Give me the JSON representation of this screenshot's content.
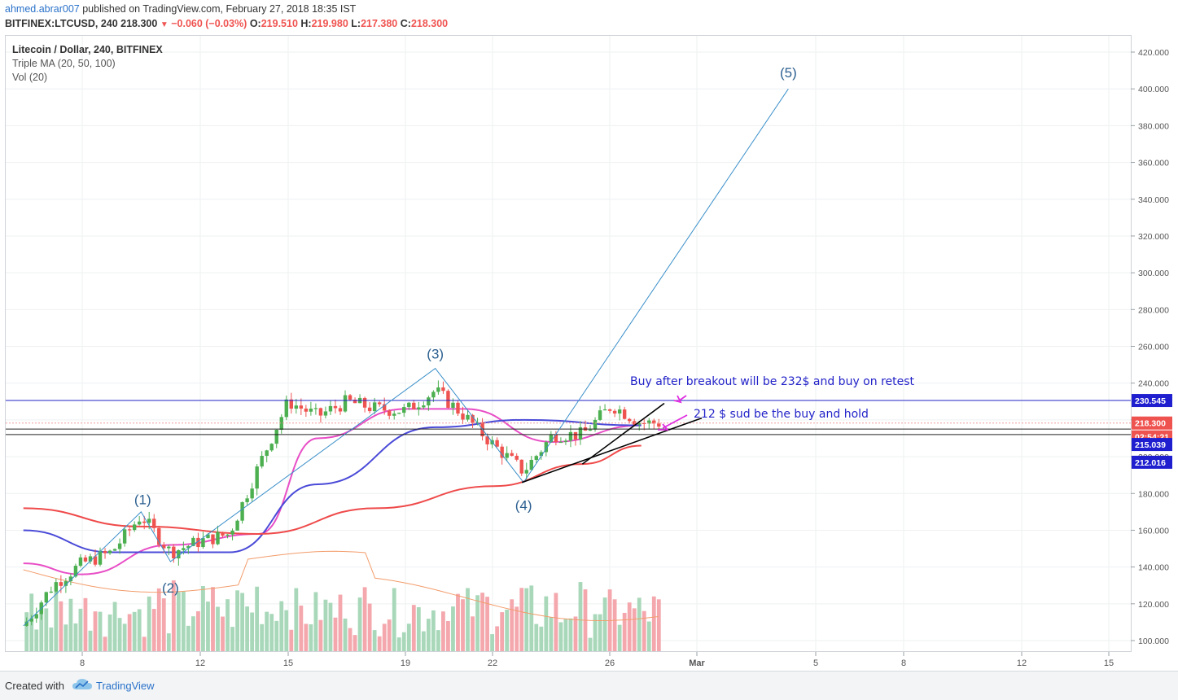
{
  "header": {
    "user": "ahmed.abrar007",
    "published": "published on TradingView.com, February 27, 2018 18:35 IST",
    "symbol_line": "BITFINEX:LTCUSD, 240",
    "last": "218.300",
    "change": "−0.060 (−0.03%)",
    "o_label": "O:",
    "o": "219.510",
    "h_label": "H:",
    "h": "219.980",
    "l_label": "L:",
    "l": "217.380",
    "c_label": "C:",
    "c": "218.300"
  },
  "legend": {
    "title": "Litecoin / Dollar, 240, BITFINEX",
    "indicator1": "Triple MA (20, 50, 100)",
    "indicator2": "Vol (20)"
  },
  "footer": {
    "created_with": "Created with",
    "brand": "TradingView"
  },
  "colors": {
    "up": "#4caf50",
    "down": "#ef5350",
    "vol_up": "#a8d8b9",
    "vol_down": "#f4a8ad",
    "ma20": "#e84ec6",
    "ma50": "#4a4ad8",
    "ma100": "#ef4a4a",
    "vol_ma": "#f39c6b",
    "wave": "#3a8fc9",
    "hline": "#2323c9",
    "annot": "#2323c9",
    "arrow": "#e02ee0",
    "last_price_bg": "#ef5350",
    "level_bg": "#1f1fd0"
  },
  "chart_data": {
    "type": "candlestick",
    "timeframe": "240",
    "x_tick_labels": [
      "8",
      "12",
      "15",
      "19",
      "22",
      "26",
      "Mar",
      "5",
      "8",
      "12",
      "15"
    ],
    "y_tick_labels": [
      "100.000",
      "120.000",
      "140.000",
      "160.000",
      "180.000",
      "200.000",
      "220.000",
      "240.000",
      "260.000",
      "280.000",
      "300.000",
      "320.000",
      "340.000",
      "360.000",
      "380.000",
      "400.000",
      "420.000"
    ],
    "ylim": [
      96,
      425
    ],
    "price_series": [
      {
        "date": "2018-02-06",
        "price": 108
      },
      {
        "date": "2018-02-07",
        "price": 130
      },
      {
        "date": "2018-02-08",
        "price": 142
      },
      {
        "date": "2018-02-09",
        "price": 148
      },
      {
        "date": "2018-02-10",
        "price": 168
      },
      {
        "date": "2018-02-11",
        "price": 148
      },
      {
        "date": "2018-02-12",
        "price": 154
      },
      {
        "date": "2018-02-13",
        "price": 158
      },
      {
        "date": "2018-02-14",
        "price": 195
      },
      {
        "date": "2018-02-15",
        "price": 230
      },
      {
        "date": "2018-02-16",
        "price": 222
      },
      {
        "date": "2018-02-17",
        "price": 230
      },
      {
        "date": "2018-02-18",
        "price": 226
      },
      {
        "date": "2018-02-19",
        "price": 225
      },
      {
        "date": "2018-02-20",
        "price": 236
      },
      {
        "date": "2018-02-21",
        "price": 222
      },
      {
        "date": "2018-02-22",
        "price": 206
      },
      {
        "date": "2018-02-23",
        "price": 192
      },
      {
        "date": "2018-02-24",
        "price": 212
      },
      {
        "date": "2018-02-25",
        "price": 212
      },
      {
        "date": "2018-02-26",
        "price": 228
      },
      {
        "date": "2018-02-27",
        "price": 218.3
      }
    ],
    "moving_averages": [
      {
        "name": "MA 20",
        "points": [
          {
            "date": "2018-02-06",
            "price": 142
          },
          {
            "date": "2018-02-08",
            "price": 136
          },
          {
            "date": "2018-02-11",
            "price": 152
          },
          {
            "date": "2018-02-14",
            "price": 158
          },
          {
            "date": "2018-02-16",
            "price": 210
          },
          {
            "date": "2018-02-19",
            "price": 226
          },
          {
            "date": "2018-02-21",
            "price": 226
          },
          {
            "date": "2018-02-24",
            "price": 208
          },
          {
            "date": "2018-02-27",
            "price": 217
          }
        ]
      },
      {
        "name": "MA 50",
        "points": [
          {
            "date": "2018-02-06",
            "price": 160
          },
          {
            "date": "2018-02-09",
            "price": 148
          },
          {
            "date": "2018-02-13",
            "price": 148
          },
          {
            "date": "2018-02-16",
            "price": 185
          },
          {
            "date": "2018-02-20",
            "price": 216
          },
          {
            "date": "2018-02-23",
            "price": 220
          },
          {
            "date": "2018-02-27",
            "price": 217
          }
        ]
      },
      {
        "name": "MA 100",
        "points": [
          {
            "date": "2018-02-06",
            "price": 172
          },
          {
            "date": "2018-02-10",
            "price": 162
          },
          {
            "date": "2018-02-14",
            "price": 158
          },
          {
            "date": "2018-02-18",
            "price": 172
          },
          {
            "date": "2018-02-22",
            "price": 184
          },
          {
            "date": "2018-02-25",
            "price": 196
          },
          {
            "date": "2018-02-27",
            "price": 206
          }
        ]
      }
    ],
    "volume_axis_note": "volume bars at bottom (up=green, down=red)",
    "wave_labels": [
      {
        "label": "(1)",
        "date": "2018-02-10",
        "price": 168
      },
      {
        "label": "(2)",
        "date": "2018-02-11",
        "price": 143
      },
      {
        "label": "(3)",
        "date": "2018-02-20",
        "price": 248
      },
      {
        "label": "(4)",
        "date": "2018-02-23",
        "price": 186
      },
      {
        "label": "(5)",
        "date": "2018-03-04",
        "price": 400
      }
    ],
    "horizontal_levels": [
      230.545,
      215.039,
      212.016
    ],
    "level_labels": [
      "230.545",
      "218.300",
      "02:54:21",
      "215.039",
      "212.016"
    ],
    "annotations": [
      "Buy after breakout will be 232$ and buy on retest",
      "212 $ sud be the buy and hold"
    ]
  }
}
